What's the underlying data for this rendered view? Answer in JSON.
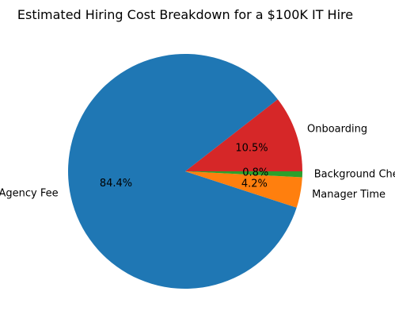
{
  "chart_data": {
    "type": "pie",
    "title": "Estimated Hiring Cost Breakdown for a $100K IT Hire",
    "slices": [
      {
        "label": "Onboarding",
        "percent": 10.5,
        "pct_label": "10.5%",
        "color": "#d62728"
      },
      {
        "label": "Agency Fee",
        "percent": 84.4,
        "pct_label": "84.4%",
        "color": "#1f77b4"
      },
      {
        "label": "Manager Time",
        "percent": 4.2,
        "pct_label": "4.2%",
        "color": "#ff7f0e"
      },
      {
        "label": "Background Check",
        "percent": 0.8,
        "pct_label": "0.8%",
        "color": "#2ca02c"
      }
    ]
  }
}
